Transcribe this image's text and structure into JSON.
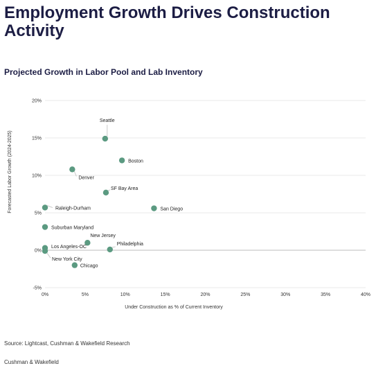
{
  "page": {
    "title": "Employment Growth Drives Construction Activity",
    "subtitle": "Projected Growth in Labor Pool and Lab Inventory",
    "source": "Source: Lightcast, Cushman & Wakefield Research",
    "footer": "Cushman & Wakefield"
  },
  "chart_data": {
    "type": "scatter",
    "xlabel": "Under Construction as % of Current Inventory",
    "ylabel": "Forecasted Labor Growth (2024-2025)",
    "xlim": [
      0,
      40
    ],
    "ylim": [
      -5,
      20
    ],
    "x_ticks": [
      0,
      5,
      10,
      15,
      20,
      25,
      30,
      35,
      40
    ],
    "y_ticks": [
      -5,
      0,
      5,
      10,
      15,
      20
    ],
    "x_tick_labels": [
      "0%",
      "5%",
      "10%",
      "15%",
      "20%",
      "25%",
      "30%",
      "35%",
      "40%"
    ],
    "y_tick_labels": [
      "-5%",
      "0%",
      "5%",
      "10%",
      "15%",
      "20%"
    ],
    "grid": "horizontal",
    "marker_color": "#5b9a81",
    "points": [
      {
        "label": "Seattle",
        "x": 7.5,
        "y": 14.9
      },
      {
        "label": "Boston",
        "x": 9.6,
        "y": 12.0
      },
      {
        "label": "Denver",
        "x": 3.4,
        "y": 10.8
      },
      {
        "label": "SF Bay Area",
        "x": 7.6,
        "y": 7.7
      },
      {
        "label": "San Diego",
        "x": 13.6,
        "y": 5.6
      },
      {
        "label": "Raleigh-Durham",
        "x": 0.0,
        "y": 5.7
      },
      {
        "label": "Suburban Maryland",
        "x": 0.0,
        "y": 3.1
      },
      {
        "label": "New Jersey",
        "x": 5.3,
        "y": 1.0
      },
      {
        "label": "Philadelphia",
        "x": 8.1,
        "y": 0.1
      },
      {
        "label": "Los Angeles-OC",
        "x": 0.0,
        "y": 0.3
      },
      {
        "label": "New York City",
        "x": 0.0,
        "y": -0.1
      },
      {
        "label": "Chicago",
        "x": 3.7,
        "y": -2.0
      }
    ]
  }
}
